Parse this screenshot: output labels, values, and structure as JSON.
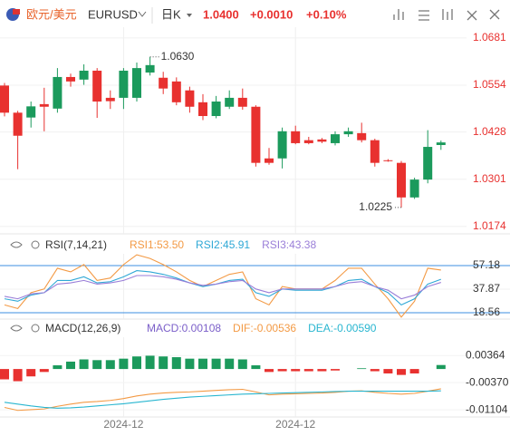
{
  "header": {
    "name": "欧元/美元",
    "symbol": "EURUSD",
    "period": "日K",
    "price": "1.0400",
    "change": "+0.0010",
    "change_pct": "+0.10%"
  },
  "chart_data": [
    {
      "type": "candlestick",
      "categories": [
        null,
        null,
        null,
        null,
        null,
        null,
        null,
        null,
        null,
        "2024-12",
        null,
        null,
        null,
        null,
        null,
        null,
        null,
        null,
        null,
        null,
        null,
        null,
        "2024-12",
        null,
        null,
        null,
        null,
        null,
        null,
        null,
        null,
        null,
        null,
        null
      ],
      "open": [
        1.0553,
        1.048,
        1.0467,
        1.0503,
        1.0491,
        1.0576,
        1.0569,
        1.0593,
        1.052,
        1.052,
        1.052,
        1.0588,
        1.0574,
        1.0564,
        1.054,
        1.0508,
        1.0471,
        1.0496,
        1.052,
        1.0496,
        1.0357,
        1.0357,
        1.043,
        1.0406,
        1.0408,
        1.0398,
        1.0422,
        1.0425,
        1.0406,
        1.0352,
        1.0345,
        1.0252,
        1.03,
        1.0393
      ],
      "high": [
        1.056,
        1.0485,
        1.051,
        1.0547,
        1.06,
        1.0585,
        1.061,
        1.06,
        1.054,
        1.06,
        1.0615,
        1.063,
        1.059,
        1.0575,
        1.055,
        1.053,
        1.0525,
        1.054,
        1.0545,
        1.05,
        1.0385,
        1.044,
        1.0445,
        1.0415,
        1.0412,
        1.043,
        1.044,
        1.0453,
        1.041,
        1.0355,
        1.035,
        1.0305,
        1.0433,
        1.0405
      ],
      "low": [
        1.047,
        1.0328,
        1.044,
        1.043,
        1.048,
        1.055,
        1.0555,
        1.0466,
        1.049,
        1.049,
        1.051,
        1.058,
        1.053,
        1.05,
        1.048,
        1.046,
        1.0465,
        1.049,
        1.0488,
        1.0335,
        1.034,
        1.033,
        1.0395,
        1.0395,
        1.0398,
        1.0392,
        1.0415,
        1.04,
        1.0335,
        1.0348,
        1.0225,
        1.0248,
        1.029,
        1.038
      ],
      "close": [
        1.048,
        1.0418,
        1.0497,
        1.0496,
        1.0576,
        1.0564,
        1.0593,
        1.051,
        1.0511,
        1.0593,
        1.06,
        1.0608,
        1.0545,
        1.0508,
        1.0496,
        1.0471,
        1.051,
        1.052,
        1.0496,
        1.0345,
        1.0345,
        1.043,
        1.0398,
        1.0398,
        1.0402,
        1.0422,
        1.043,
        1.0406,
        1.0345,
        1.035,
        1.0252,
        1.03,
        1.0388,
        1.04
      ],
      "up_color": "#1b9a5c",
      "down_color": "#e8312f",
      "tick_color": "#e8312f",
      "ylim": [
        1.0154,
        1.071
      ],
      "yticks": [
        1.0174,
        1.0301,
        1.0428,
        1.0554,
        1.0681
      ],
      "grid": true,
      "annotations": [
        {
          "value": 1.063,
          "label": "1.0630"
        },
        {
          "value": 1.0225,
          "label": "1.0225"
        }
      ]
    },
    {
      "type": "line",
      "title": "RSI(7,14,21)",
      "series": [
        {
          "name": "RSI1:53.50",
          "color": "#f39a45",
          "values": [
            25,
            22,
            35,
            38,
            55,
            52,
            58,
            45,
            47,
            58,
            66,
            63,
            58,
            52,
            45,
            40,
            45,
            50,
            52,
            30,
            25,
            40,
            38,
            38,
            38,
            45,
            55,
            55,
            42,
            30,
            15,
            28,
            55,
            53.5
          ]
        },
        {
          "name": "RSI2:45.91",
          "color": "#2fa8d6",
          "values": [
            30,
            28,
            33,
            35,
            45,
            45,
            48,
            43,
            44,
            48,
            53,
            52,
            50,
            47,
            43,
            40,
            42,
            45,
            46,
            35,
            32,
            38,
            37,
            37,
            37,
            40,
            45,
            46,
            40,
            35,
            25,
            30,
            42,
            45.91
          ]
        },
        {
          "name": "RSI3:43.38",
          "color": "#9a7ed8",
          "values": [
            32,
            30,
            34,
            35,
            42,
            43,
            45,
            42,
            43,
            45,
            49,
            49,
            48,
            46,
            43,
            41,
            42,
            44,
            45,
            38,
            35,
            38,
            38,
            38,
            38,
            40,
            43,
            44,
            40,
            37,
            30,
            33,
            40,
            43.38
          ]
        }
      ],
      "ylim": [
        13.4,
        66.8
      ],
      "yticks": [
        18.56,
        37.87,
        57.18
      ],
      "level_line_color": "#3d8fe0"
    },
    {
      "type": "combo",
      "title": "MACD(12,26,9)",
      "series": [
        {
          "name": "MACD:0.00108",
          "color": "#7b5fc9",
          "up_color": "#1b9a5c",
          "down_color": "#e8312f",
          "values": [
            -0.0028,
            -0.0033,
            -0.002,
            -0.0008,
            0.001,
            0.002,
            0.0026,
            0.0024,
            0.0024,
            0.0028,
            0.0034,
            0.0036,
            0.0034,
            0.0032,
            0.0028,
            0.0028,
            0.0028,
            0.0028,
            0.0026,
            0.001,
            -0.0008,
            -0.0006,
            -0.0006,
            -0.0006,
            -0.0006,
            -0.0004,
            0,
            0.0002,
            -0.0006,
            -0.0012,
            -0.0016,
            -0.0012,
            0,
            0.00108
          ]
        },
        {
          "name": "DIF:-0.00536",
          "color": "#f39a45",
          "values": [
            -0.0104,
            -0.0112,
            -0.011,
            -0.0108,
            -0.0101,
            -0.0095,
            -0.009,
            -0.0088,
            -0.0085,
            -0.008,
            -0.0073,
            -0.0068,
            -0.0065,
            -0.0063,
            -0.0062,
            -0.006,
            -0.0058,
            -0.0056,
            -0.0055,
            -0.0062,
            -0.007,
            -0.0068,
            -0.0067,
            -0.0066,
            -0.0065,
            -0.0063,
            -0.006,
            -0.0059,
            -0.0063,
            -0.0066,
            -0.0068,
            -0.0066,
            -0.006,
            -0.00536
          ]
        },
        {
          "name": "DEA:-0.00590",
          "color": "#29b6d0",
          "values": [
            -0.009,
            -0.0095,
            -0.01,
            -0.0104,
            -0.0106,
            -0.0105,
            -0.0103,
            -0.01,
            -0.0097,
            -0.0094,
            -0.009,
            -0.0086,
            -0.0082,
            -0.0079,
            -0.0076,
            -0.0074,
            -0.0072,
            -0.007,
            -0.0068,
            -0.0067,
            -0.0066,
            -0.0065,
            -0.0064,
            -0.0063,
            -0.0062,
            -0.0061,
            -0.006,
            -0.006,
            -0.006,
            -0.006,
            -0.006,
            -0.006,
            -0.006,
            -0.0059
          ]
        }
      ],
      "ylim": [
        -0.01298,
        0.00861
      ],
      "yticks": [
        -0.01104,
        {
          "value": -0.0037,
          "label": "-0.00370"
        },
        0.00364
      ]
    }
  ]
}
